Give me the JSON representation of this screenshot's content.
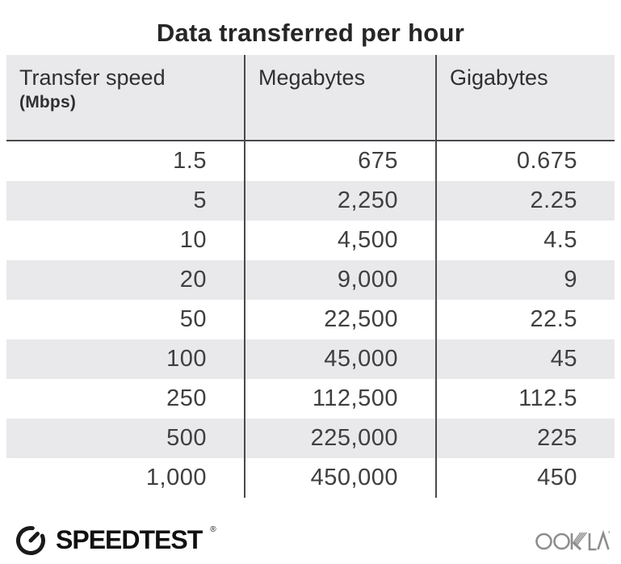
{
  "title": "Data transferred per hour",
  "chart_data": {
    "type": "table",
    "title": "Data transferred per hour",
    "columns": [
      "Transfer speed (Mbps)",
      "Megabytes",
      "Gigabytes"
    ],
    "rows": [
      [
        1.5,
        675,
        0.675
      ],
      [
        5,
        2250,
        2.25
      ],
      [
        10,
        4500,
        4.5
      ],
      [
        20,
        9000,
        9
      ],
      [
        50,
        22500,
        22.5
      ],
      [
        100,
        45000,
        45
      ],
      [
        250,
        112500,
        112.5
      ],
      [
        500,
        225000,
        225
      ],
      [
        1000,
        450000,
        450
      ]
    ]
  },
  "table": {
    "header": {
      "col1_label": "Transfer speed",
      "col1_sublabel": "(Mbps)",
      "col2_label": "Megabytes",
      "col3_label": "Gigabytes"
    },
    "rows": [
      {
        "speed": "1.5",
        "megabytes": "675",
        "gigabytes": "0.675"
      },
      {
        "speed": "5",
        "megabytes": "2,250",
        "gigabytes": "2.25"
      },
      {
        "speed": "10",
        "megabytes": "4,500",
        "gigabytes": "4.5"
      },
      {
        "speed": "20",
        "megabytes": "9,000",
        "gigabytes": "9"
      },
      {
        "speed": "50",
        "megabytes": "22,500",
        "gigabytes": "22.5"
      },
      {
        "speed": "100",
        "megabytes": "45,000",
        "gigabytes": "45"
      },
      {
        "speed": "250",
        "megabytes": "112,500",
        "gigabytes": "112.5"
      },
      {
        "speed": "500",
        "megabytes": "225,000",
        "gigabytes": "225"
      },
      {
        "speed": "1,000",
        "megabytes": "450,000",
        "gigabytes": "450"
      }
    ]
  },
  "footer": {
    "speedtest": "SPEEDTEST",
    "speedtest_mark": "®",
    "ookla": "OOKLA",
    "ookla_mark": "®"
  },
  "colors": {
    "stripe_gray": "#e9e9ec",
    "divider_dark": "#4a4a4a",
    "title_text": "#262626",
    "body_text": "#3f3f3f",
    "logo_black": "#111111",
    "ookla_gray": "#8d8d8d"
  }
}
